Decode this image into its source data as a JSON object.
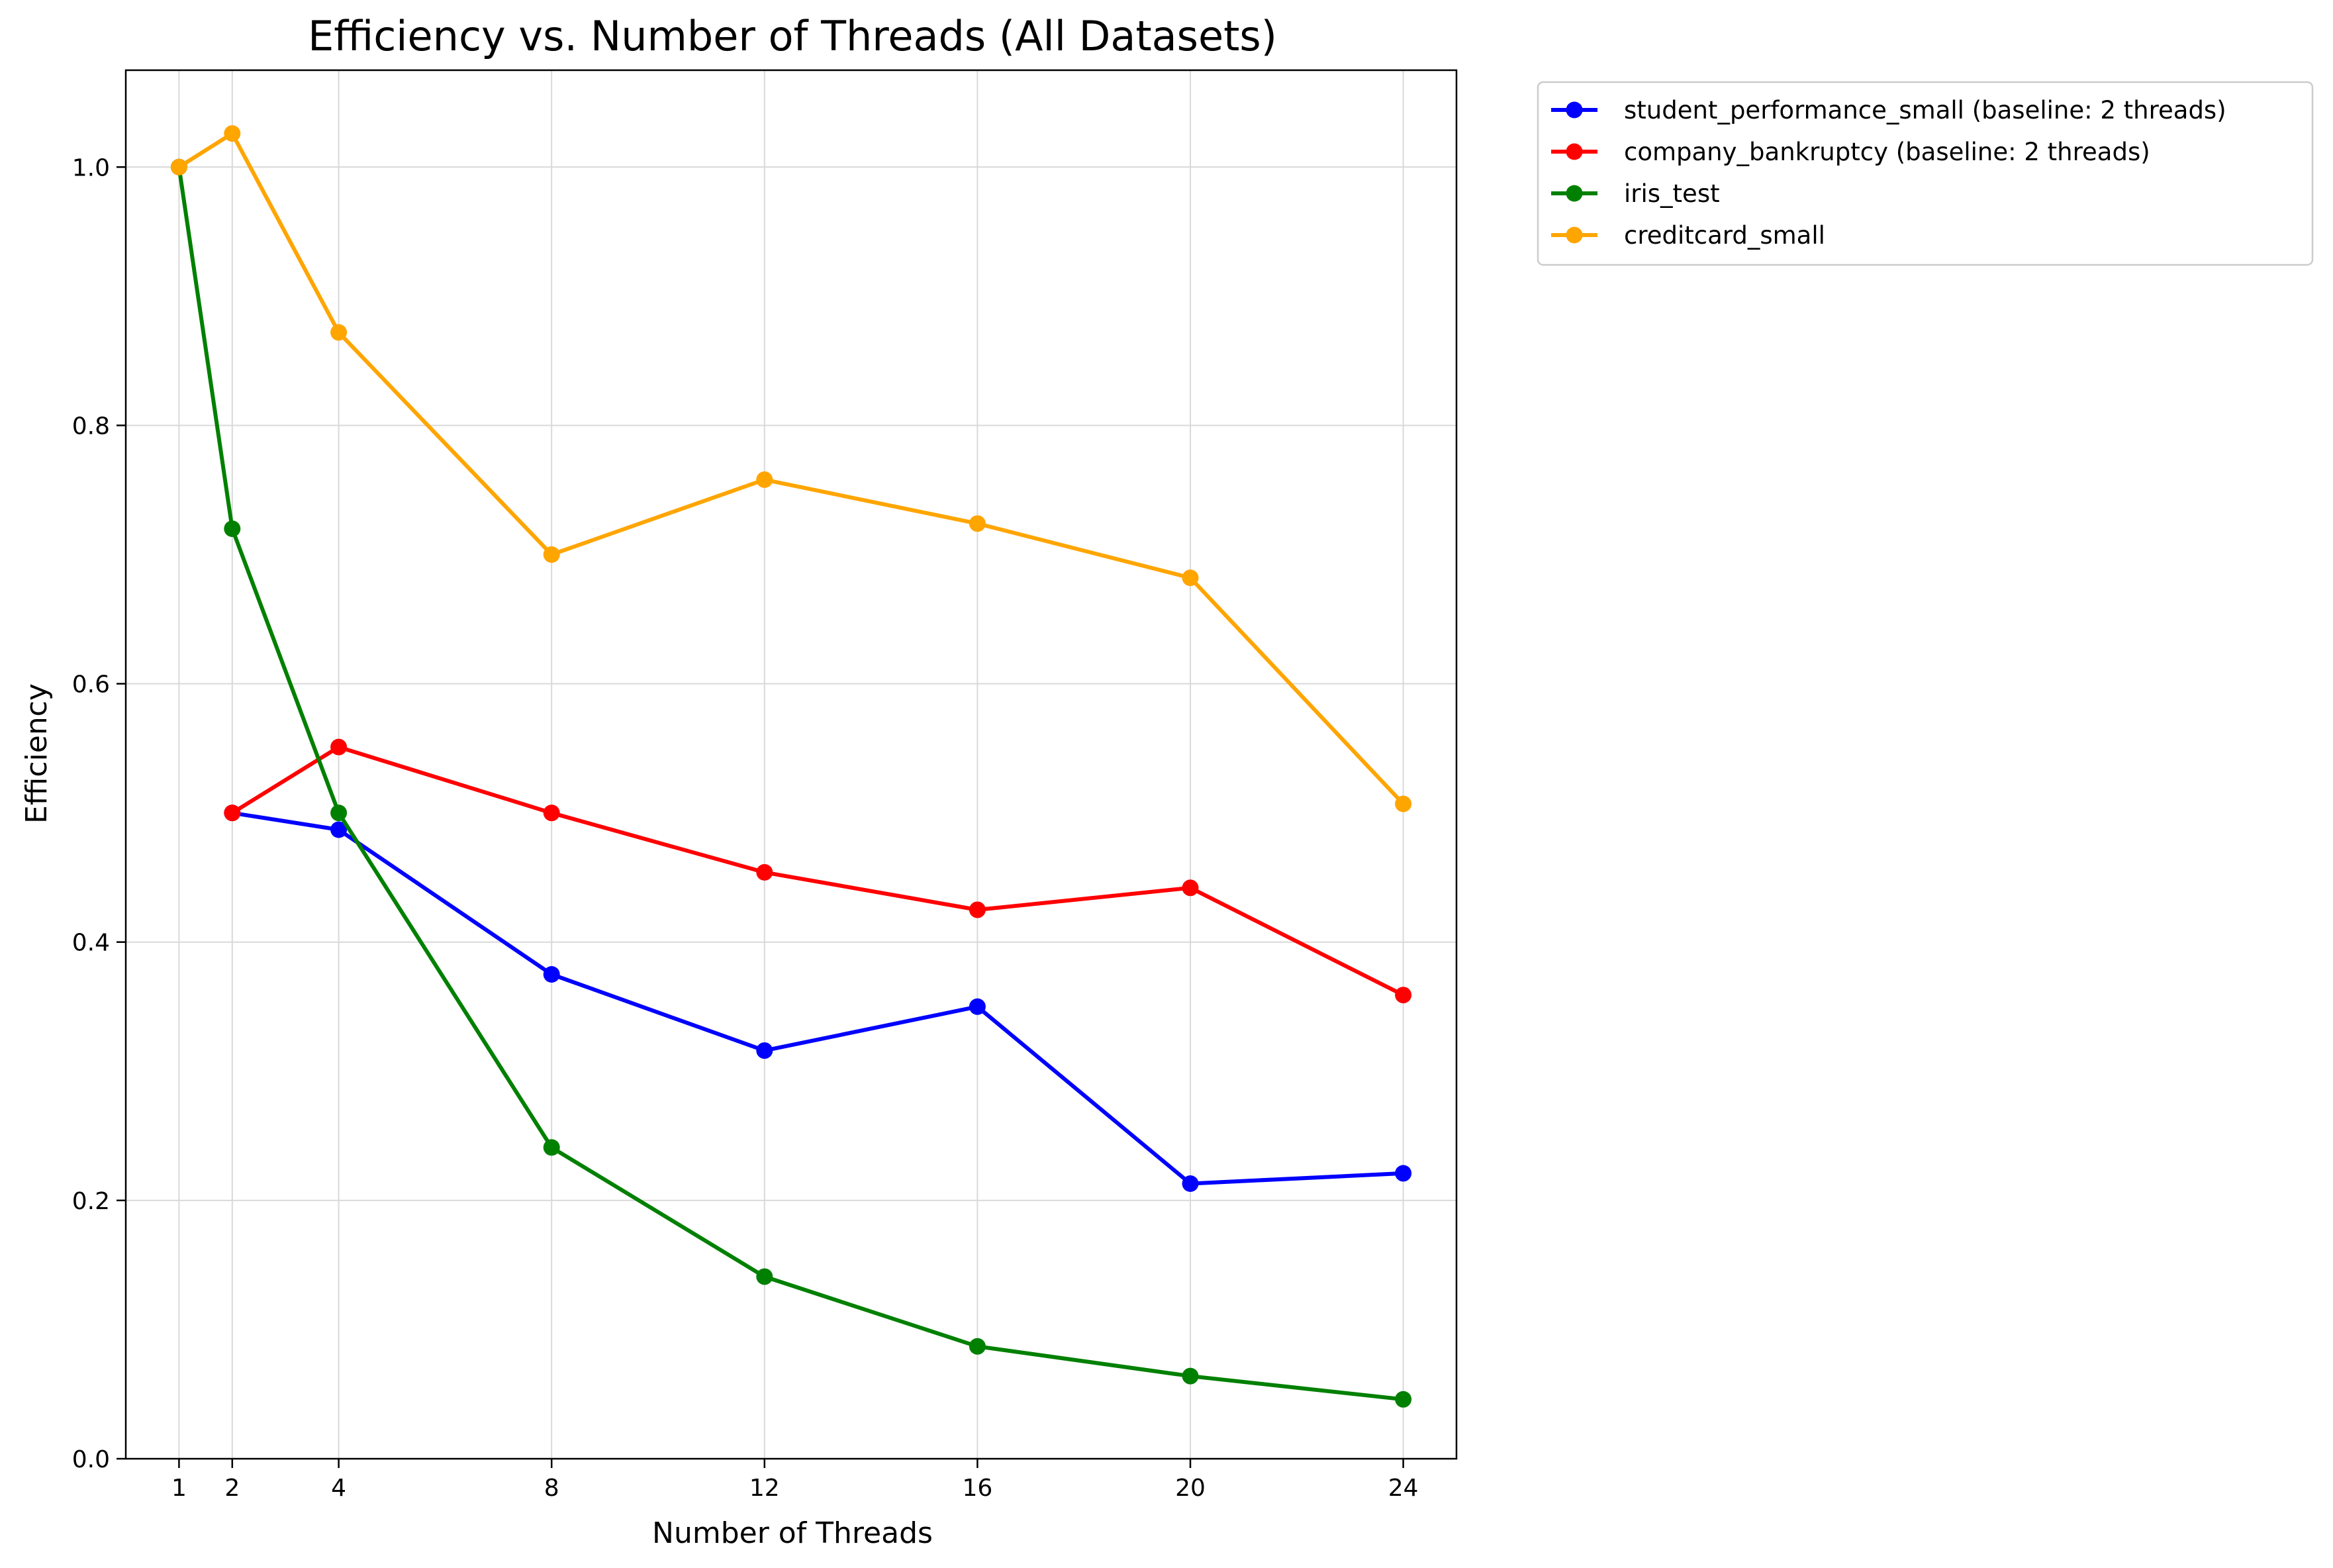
{
  "chart_data": {
    "type": "line",
    "title": "Efficiency vs. Number of Threads (All Datasets)",
    "xlabel": "Number of Threads",
    "ylabel": "Efficiency",
    "xlim": [
      0,
      25
    ],
    "ylim": [
      0,
      1.075
    ],
    "xticks": [
      1,
      2,
      4,
      8,
      12,
      16,
      20,
      24
    ],
    "yticks": [
      0.0,
      0.2,
      0.4,
      0.6,
      0.8,
      1.0
    ],
    "grid": true,
    "legend_position": "outside-upper-right",
    "series": [
      {
        "name": "student_performance_small (baseline: 2 threads)",
        "color": "#0000ff",
        "x": [
          2,
          4,
          8,
          12,
          16,
          20,
          24
        ],
        "y": [
          0.5,
          0.487,
          0.375,
          0.316,
          0.35,
          0.213,
          0.221
        ]
      },
      {
        "name": "company_bankruptcy (baseline: 2 threads)",
        "color": "#ff0000",
        "x": [
          2,
          4,
          8,
          12,
          16,
          20,
          24
        ],
        "y": [
          0.5,
          0.551,
          0.5,
          0.454,
          0.425,
          0.442,
          0.359
        ]
      },
      {
        "name": "iris_test",
        "color": "#008000",
        "x": [
          1,
          2,
          4,
          8,
          12,
          16,
          20,
          24
        ],
        "y": [
          1.0,
          0.72,
          0.5,
          0.241,
          0.141,
          0.087,
          0.064,
          0.046
        ]
      },
      {
        "name": "creditcard_small",
        "color": "#ffa500",
        "x": [
          1,
          2,
          4,
          8,
          12,
          16,
          20,
          24
        ],
        "y": [
          1.0,
          1.026,
          0.872,
          0.7,
          0.758,
          0.724,
          0.682,
          0.507
        ]
      }
    ]
  }
}
